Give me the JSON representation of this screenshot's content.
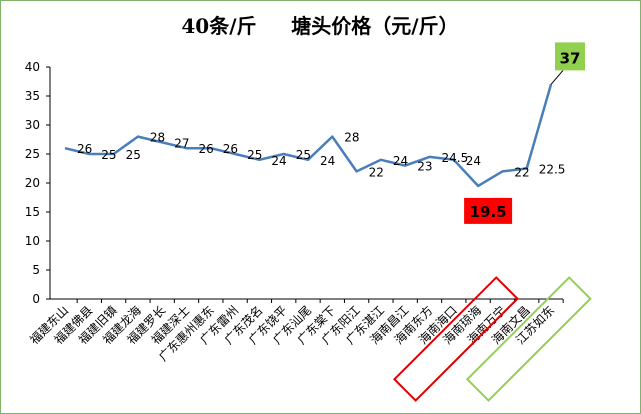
{
  "chart_data": {
    "type": "line",
    "title": "40条/斤     塘头价格（元/斤）",
    "xlabel": "",
    "ylabel": "",
    "ylim": [
      0,
      40
    ],
    "yticks": [
      "0",
      "5",
      "10",
      "15",
      "20",
      "25",
      "30",
      "35",
      "40"
    ],
    "grid": false,
    "legend": "none",
    "categories": [
      "福建东山",
      "福建佛县",
      "福建旧镇",
      "福建龙海",
      "福建罗长",
      "福建深士",
      "广东惠州惠东",
      "广东雷州",
      "广东茂名",
      "广东饶平",
      "广东汕尾",
      "广东棠下",
      "广东阳江",
      "广东湛江",
      "海南昌江",
      "海南东方",
      "海南海口",
      "海南琼海",
      "海南万宁",
      "海南文昌",
      "江苏如东"
    ],
    "values": [
      26,
      25,
      25,
      28,
      27,
      26,
      26,
      25,
      24,
      25,
      24,
      28,
      22,
      24,
      23,
      24.5,
      24,
      19.5,
      22,
      22.5,
      37
    ],
    "labels": [
      "26",
      "25",
      "25",
      "28",
      "27",
      "26",
      "26",
      "25",
      "24",
      "25",
      "24",
      "28",
      "22",
      "24",
      "23",
      "24.5",
      "24",
      "19.5",
      "22",
      "22.5",
      "37"
    ],
    "highlights": {
      "min": {
        "label": "19.5",
        "color": "#ff0000"
      },
      "max": {
        "label": "37",
        "color": "#92d050"
      },
      "red_box_categories": [
        "海南海口",
        "海南琼海"
      ],
      "green_box_categories": [
        "海南文昌",
        "江苏如东"
      ]
    },
    "line_color": "#4a7ebb"
  }
}
